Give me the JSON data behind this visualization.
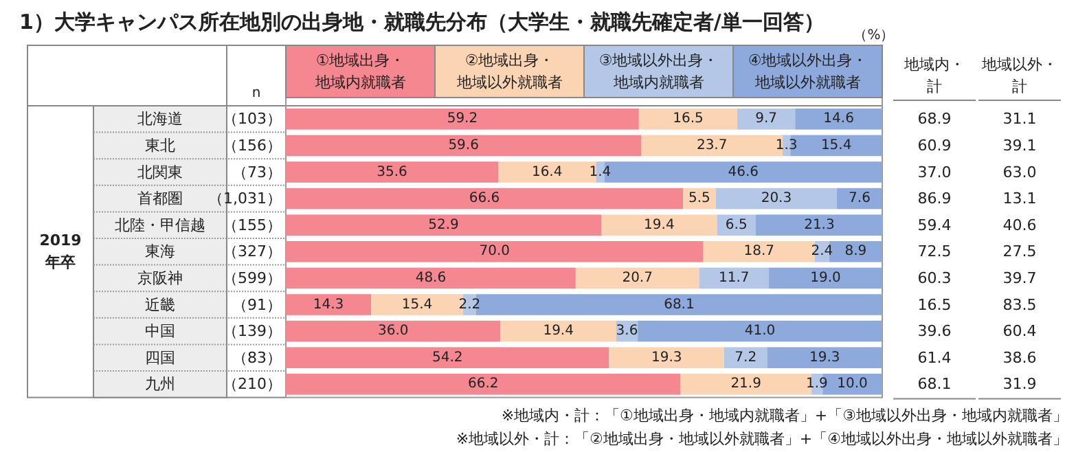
{
  "chart_data": {
    "type": "bar",
    "orientation": "horizontal",
    "stacked": true,
    "legend": "top",
    "xlim": [
      0,
      100
    ],
    "title": "1）大学キャンパス所在地別の出身地・就職先分布（大学生・就職先確定者/単一回答）",
    "categories": [
      "北海道",
      "東北",
      "北関東",
      "首都圏",
      "北陸・甲信越",
      "東海",
      "京阪神",
      "近畿",
      "中国",
      "四国",
      "九州"
    ],
    "series": [
      {
        "name": "①地域出身・地域内就職者",
        "color": "#f4878f",
        "values": [
          59.2,
          59.6,
          35.6,
          66.6,
          52.9,
          70.0,
          48.6,
          14.3,
          36.0,
          54.2,
          66.2
        ],
        "value_labels": [
          "59.2",
          "59.6",
          "35.6",
          "66.6",
          "52.9",
          "70.0",
          "48.6",
          "14.3",
          "36.0",
          "54.2",
          "66.2"
        ]
      },
      {
        "name": "②地域出身・地域以外就職者",
        "color": "#fbd4b4",
        "values": [
          16.5,
          23.7,
          16.4,
          5.5,
          19.4,
          18.7,
          20.7,
          15.4,
          19.4,
          19.3,
          21.9
        ],
        "value_labels": [
          "16.5",
          "23.7",
          "16.4",
          "5.5",
          "19.4",
          "18.7",
          "20.7",
          "15.4",
          "19.4",
          "19.3",
          "21.9"
        ]
      },
      {
        "name": "③地域以外出身・地域内就職者",
        "color": "#b4c7e7",
        "values": [
          9.7,
          1.3,
          1.4,
          20.3,
          6.5,
          2.4,
          11.7,
          2.2,
          3.6,
          7.2,
          1.9
        ],
        "value_labels": [
          "9.7",
          "1.3",
          "1.4",
          "20.3",
          "6.5",
          "2.4",
          "11.7",
          "2.2",
          "3.6",
          "7.2",
          "1.9"
        ]
      },
      {
        "name": "④地域以外出身・地域以外就職者",
        "color": "#8eaadc",
        "values": [
          14.6,
          15.4,
          46.6,
          7.6,
          21.3,
          8.9,
          19.0,
          68.1,
          41.0,
          19.3,
          10.0
        ],
        "value_labels": [
          "14.6",
          "15.4",
          "46.6",
          "7.6",
          "21.3",
          "8.9",
          "19.0",
          "68.1",
          "41.0",
          "19.3",
          "10.0"
        ]
      }
    ],
    "annotations": [
      "（%）",
      "2019年卒",
      "n",
      "（103）",
      "（156）",
      "（73）",
      "（1,031）",
      "（155）",
      "（327）",
      "（599）",
      "（91）",
      "（139）",
      "（83）",
      "（210）",
      "地域内・計",
      "68.9",
      "60.9",
      "37.0",
      "86.9",
      "59.4",
      "72.5",
      "60.3",
      "16.5",
      "39.6",
      "61.4",
      "68.1",
      "地域以外・計",
      "31.1",
      "39.1",
      "63.0",
      "13.1",
      "40.6",
      "27.5",
      "39.7",
      "83.5",
      "60.4",
      "38.6",
      "31.9",
      "※地域内・計：「①地域出身・地域内就職者」+「③地域以外出身・地域内就職者」",
      "※地域以外・計：「②地域出身・地域以外就職者」+「④地域以外出身・地域以外就職者」"
    ]
  }
}
